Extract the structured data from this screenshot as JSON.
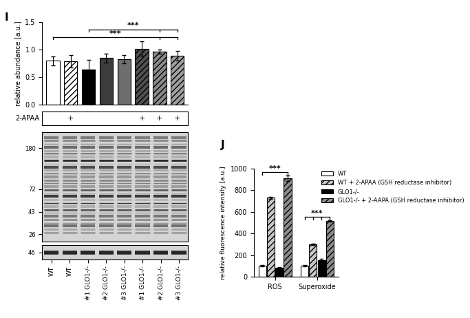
{
  "chart_data": [
    {
      "panel": "I",
      "type": "bar",
      "y_label": "relative abundance [a.u.]",
      "categories": [
        "WT",
        "WT",
        "#1 GLO1-/-",
        "#2 GLO1-/-",
        "#3 GLO1-/-",
        "#1 GLO1-/-",
        "#2 GLO1-/-",
        "#3 GLO1-/-"
      ],
      "values": [
        0.8,
        0.79,
        0.64,
        0.85,
        0.83,
        1.02,
        0.97,
        0.89
      ],
      "errors": [
        0.08,
        0.11,
        0.18,
        0.08,
        0.07,
        0.13,
        0.04,
        0.09
      ],
      "colors": [
        "#ffffff",
        "#ffffff",
        "#000000",
        "#3c3c3c",
        "#6e6e6e",
        "#505050",
        "#8a8a8a",
        "#a0a0a0"
      ],
      "ylim": [
        0,
        1.5
      ],
      "yticks": [
        {
          "value": 0,
          "label": "0.0"
        },
        {
          "value": 0.5,
          "label": "0.5"
        },
        {
          "value": 1.0,
          "label": "1.0"
        },
        {
          "value": 1.5,
          "label": "1.5"
        }
      ],
      "tick_labels": "y",
      "treatment": {
        "label": "2-APAA",
        "marks": [
          null,
          "+",
          null,
          null,
          null,
          "+",
          "+",
          "+"
        ]
      },
      "brackets": [
        {
          "from": 0,
          "to": [
            6,
            7
          ],
          "label": "***"
        },
        {
          "from": 2,
          "to": [
            6,
            7
          ],
          "label": "***"
        }
      ],
      "blot": {
        "mw_markers": [
          180,
          72,
          43,
          26
        ],
        "loading_marker": 46
      }
    },
    {
      "panel": "J",
      "type": "bar",
      "y_label": "relative fluorescence intensity [a.u.]",
      "categories": [
        "ROS",
        "Superoxide"
      ],
      "series": [
        {
          "name": "WT",
          "color": "#ffffff",
          "values": [
            100,
            100
          ],
          "errors": [
            5,
            5
          ]
        },
        {
          "name": "WT + 2-APAA (GSH reductase inhibitor)",
          "color": "#c8c8c8",
          "values": [
            730,
            300
          ],
          "errors": [
            10,
            8
          ]
        },
        {
          "name": "GLO1-/-",
          "color": "#000000",
          "values": [
            85,
            155
          ],
          "errors": [
            3,
            10
          ]
        },
        {
          "name": "GLO1-/- + 2-AAPA (GSH reductase inhibitor)",
          "color": "#8c8c8c",
          "values": [
            910,
            515
          ],
          "errors": [
            25,
            8
          ]
        }
      ],
      "ylim": [
        0,
        1000
      ],
      "yticks": [
        0,
        200,
        400,
        600,
        800,
        1000
      ],
      "legend": "upper right",
      "brackets": [
        {
          "category": 0,
          "from": 0,
          "to": [
            3
          ],
          "label": "***"
        },
        {
          "category": 1,
          "from": 0,
          "to": [
            1,
            2,
            3
          ],
          "label": "***"
        }
      ]
    }
  ]
}
